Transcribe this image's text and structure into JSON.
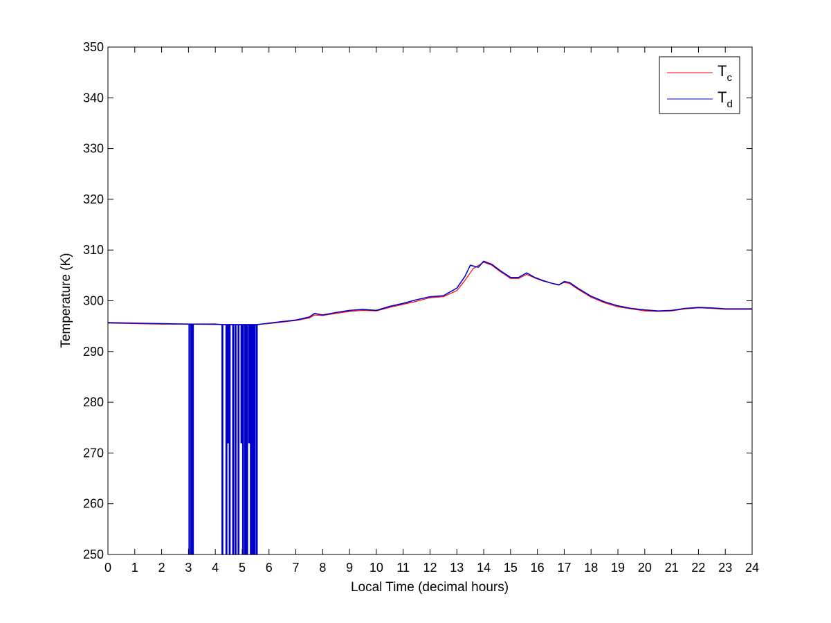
{
  "chart_data": {
    "type": "line",
    "title": "",
    "xlabel": "Local Time (decimal hours)",
    "ylabel": "Temperature (K)",
    "xlim": [
      0,
      24
    ],
    "ylim": [
      250,
      350
    ],
    "xticks": [
      "0",
      "1",
      "2",
      "3",
      "4",
      "5",
      "6",
      "7",
      "8",
      "9",
      "10",
      "11",
      "12",
      "13",
      "14",
      "15",
      "16",
      "17",
      "18",
      "19",
      "20",
      "21",
      "22",
      "23",
      "24"
    ],
    "yticks": [
      "250",
      "260",
      "270",
      "280",
      "290",
      "300",
      "310",
      "320",
      "330",
      "340",
      "350"
    ],
    "grid": false,
    "legend_position": "top-right",
    "colors": {
      "T_c": "#ff0000",
      "T_d": "#0000cc"
    },
    "series": [
      {
        "name": "T_c",
        "legend_main": "T",
        "legend_sub": "c",
        "color": "#ff0000",
        "x": [
          0,
          1,
          2,
          3,
          4,
          5,
          5.5,
          6,
          7,
          7.5,
          7.7,
          8,
          8.5,
          9,
          9.5,
          10,
          10.5,
          11,
          11.5,
          12,
          12.5,
          13,
          13.3,
          13.6,
          14,
          14.3,
          14.6,
          15,
          15.3,
          15.6,
          15.9,
          16.2,
          16.5,
          16.8,
          17,
          17.2,
          17.5,
          18,
          18.5,
          19,
          19.5,
          20,
          20.5,
          21,
          21.5,
          22,
          22.5,
          23,
          24
        ],
        "y": [
          295.6,
          295.5,
          295.4,
          295.4,
          295.3,
          295.3,
          295.3,
          295.5,
          296.1,
          296.6,
          297.2,
          297.1,
          297.5,
          297.9,
          298.1,
          298.0,
          298.7,
          299.3,
          299.9,
          300.6,
          300.8,
          302.0,
          304.0,
          306.3,
          307.6,
          307.0,
          305.8,
          304.4,
          304.4,
          305.2,
          304.5,
          303.9,
          303.5,
          303.2,
          303.6,
          303.4,
          302.3,
          300.7,
          299.6,
          298.8,
          298.4,
          298.0,
          297.9,
          298.0,
          298.4,
          298.6,
          298.5,
          298.3,
          298.3
        ]
      },
      {
        "name": "T_d",
        "legend_main": "T",
        "legend_sub": "d",
        "color": "#0000cc",
        "x": [
          0,
          1,
          2,
          3,
          3.02,
          3.02,
          3.04,
          3.04,
          3.09,
          3.09,
          3.11,
          3.11,
          3.15,
          3.15,
          3.18,
          3.18,
          4.0,
          4.25,
          4.25,
          4.28,
          4.28,
          4.4,
          4.4,
          4.43,
          4.43,
          4.46,
          4.46,
          4.49,
          4.49,
          4.52,
          4.52,
          4.55,
          4.55,
          4.65,
          4.65,
          4.68,
          4.68,
          4.74,
          4.74,
          4.77,
          4.77,
          4.85,
          4.85,
          4.88,
          4.88,
          4.96,
          4.96,
          4.99,
          4.99,
          5.02,
          5.02,
          5.05,
          5.05,
          5.1,
          5.1,
          5.13,
          5.13,
          5.17,
          5.17,
          5.2,
          5.2,
          5.25,
          5.25,
          5.28,
          5.28,
          5.31,
          5.31,
          5.34,
          5.34,
          5.38,
          5.38,
          5.41,
          5.41,
          5.45,
          5.45,
          5.48,
          5.48,
          5.53,
          5.53,
          5.56,
          5.56,
          6,
          7,
          7.5,
          7.7,
          8,
          8.5,
          9,
          9.5,
          10,
          10.5,
          11,
          11.5,
          12,
          12.5,
          13,
          13.3,
          13.5,
          13.8,
          14,
          14.3,
          14.6,
          15,
          15.3,
          15.6,
          15.9,
          16.2,
          16.5,
          16.8,
          17,
          17.2,
          17.5,
          18,
          18.5,
          19,
          19.5,
          20,
          20.5,
          21,
          21.5,
          22,
          22.5,
          23,
          24
        ],
        "y": [
          295.7,
          295.6,
          295.5,
          295.4,
          295.4,
          250.0,
          250.0,
          295.4,
          295.4,
          250.0,
          250.0,
          295.4,
          295.4,
          250.0,
          250.0,
          295.4,
          295.4,
          295.3,
          250.0,
          250.0,
          295.3,
          295.3,
          250.0,
          250.0,
          295.3,
          295.3,
          272.0,
          272.0,
          295.3,
          295.3,
          250.0,
          250.0,
          295.3,
          295.3,
          250.0,
          250.0,
          295.3,
          295.3,
          250.0,
          250.0,
          295.3,
          295.3,
          250.0,
          250.0,
          295.3,
          295.3,
          272.0,
          272.0,
          295.3,
          295.3,
          250.0,
          250.0,
          295.3,
          295.3,
          250.0,
          250.0,
          295.3,
          295.3,
          250.0,
          250.0,
          295.3,
          295.3,
          272.0,
          272.0,
          295.3,
          295.3,
          250.0,
          250.0,
          295.3,
          295.3,
          250.0,
          250.0,
          295.3,
          295.3,
          250.0,
          250.0,
          295.3,
          295.3,
          250.0,
          250.0,
          295.3,
          295.6,
          296.2,
          296.8,
          297.5,
          297.2,
          297.7,
          298.1,
          298.3,
          298.1,
          298.9,
          299.5,
          300.2,
          300.8,
          301.0,
          302.5,
          304.8,
          307.0,
          306.6,
          307.8,
          307.2,
          306.0,
          304.6,
          304.6,
          305.5,
          304.6,
          304.0,
          303.5,
          303.1,
          303.8,
          303.6,
          302.5,
          300.9,
          299.8,
          299.0,
          298.5,
          298.2,
          298.0,
          298.1,
          298.5,
          298.7,
          298.6,
          298.4,
          298.4
        ]
      }
    ]
  }
}
